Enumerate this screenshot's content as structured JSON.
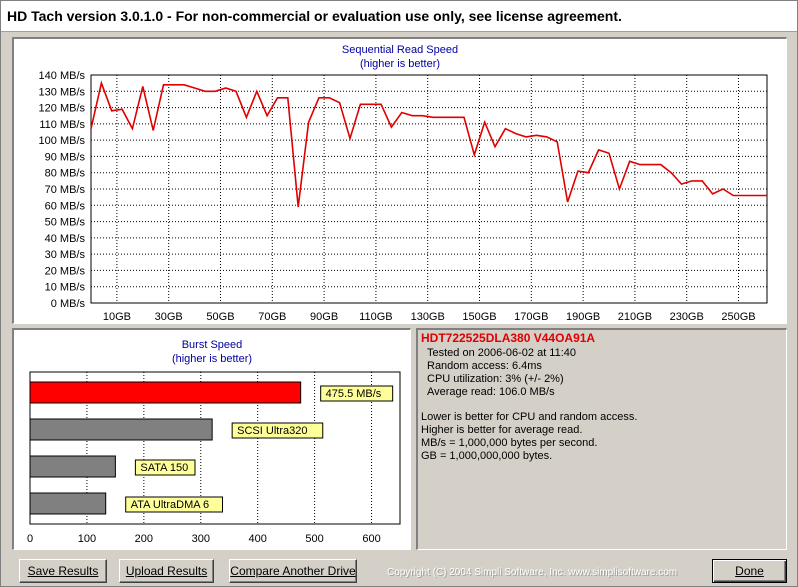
{
  "window": {
    "title": "HD Tach version 3.0.1.0  - For non-commercial or evaluation use only, see license agreement."
  },
  "seq_chart": {
    "title_line1": "Sequential Read Speed",
    "title_line2": "(higher is better)",
    "y_ticks": [
      "0 MB/s",
      "10 MB/s",
      "20 MB/s",
      "30 MB/s",
      "40 MB/s",
      "50 MB/s",
      "60 MB/s",
      "70 MB/s",
      "80 MB/s",
      "90 MB/s",
      "100 MB/s",
      "110 MB/s",
      "120 MB/s",
      "130 MB/s",
      "140 MB/s"
    ],
    "x_ticks": [
      "10GB",
      "30GB",
      "50GB",
      "70GB",
      "90GB",
      "110GB",
      "130GB",
      "150GB",
      "170GB",
      "190GB",
      "210GB",
      "230GB",
      "250GB"
    ],
    "line_color": "#e00000"
  },
  "burst_chart": {
    "title_line1": "Burst Speed",
    "title_line2": "(higher is better)",
    "x_ticks": [
      "0",
      "100",
      "200",
      "300",
      "400",
      "500",
      "600"
    ],
    "bars": [
      {
        "label": "475.5 MB/s",
        "color": "#ff0000"
      },
      {
        "label": "SCSI Ultra320",
        "color": "#808080"
      },
      {
        "label": "SATA 150",
        "color": "#808080"
      },
      {
        "label": "ATA UltraDMA 6",
        "color": "#808080"
      }
    ]
  },
  "chart_data": [
    {
      "type": "line",
      "title": "Sequential Read Speed",
      "subtitle": "(higher is better)",
      "xlabel": "",
      "ylabel": "",
      "xlim": [
        0,
        261
      ],
      "ylim": [
        0,
        140
      ],
      "grid": true,
      "series": [
        {
          "x": [
            0,
            4,
            8,
            12,
            16,
            20,
            24,
            28,
            32,
            36,
            40,
            44,
            48,
            52,
            56,
            60,
            64,
            68,
            72,
            76,
            80,
            84,
            88,
            92,
            96,
            100,
            104,
            108,
            112,
            116,
            120,
            124,
            128,
            132,
            136,
            140,
            144,
            148,
            152,
            156,
            160,
            164,
            168,
            172,
            176,
            180,
            184,
            188,
            192,
            196,
            200,
            204,
            208,
            212,
            216,
            220,
            224,
            228,
            232,
            236,
            240,
            244,
            248,
            252,
            256,
            261
          ],
          "y": [
            107,
            135,
            118,
            119,
            107,
            133,
            106,
            134,
            134,
            134,
            132,
            130,
            130,
            132,
            130,
            114,
            130,
            115,
            126,
            126,
            59,
            111,
            126,
            126,
            123,
            101,
            122,
            122,
            122,
            108,
            117,
            115,
            115,
            114,
            114,
            114,
            114,
            91,
            111,
            96,
            107,
            104,
            102,
            103,
            102,
            99,
            62,
            81,
            80,
            94,
            92,
            70,
            87,
            85,
            85,
            85,
            80,
            73,
            75,
            75,
            67,
            70,
            66,
            66,
            66,
            66
          ]
        }
      ]
    },
    {
      "type": "bar",
      "title": "Burst Speed",
      "subtitle": "(higher is better)",
      "categories": [
        "475.5 MB/s",
        "SCSI Ultra320",
        "SATA 150",
        "ATA UltraDMA 6"
      ],
      "values": [
        475.5,
        320,
        150,
        133
      ],
      "xlim": [
        0,
        650
      ],
      "grid": true
    }
  ],
  "info": {
    "drive_name": "HDT722525DLA380 V44OA91A",
    "tested_on": "Tested on 2006-06-02 at 11:40",
    "random_access": "Random access: 6.4ms",
    "cpu_util": "CPU utilization: 3% (+/- 2%)",
    "avg_read": "Average read: 106.0 MB/s",
    "note1": "Lower is better for CPU and random access.",
    "note2": "Higher is better for average read.",
    "note3": "MB/s = 1,000,000 bytes per second.",
    "note4": "GB = 1,000,000,000 bytes."
  },
  "buttons": {
    "save": "Save Results",
    "upload": "Upload Results",
    "compare": "Compare Another Drive",
    "done": "Done"
  },
  "footer": {
    "copyright": "Copyright (C) 2004 Simpli Software, Inc. www.simplisoftware.com"
  }
}
